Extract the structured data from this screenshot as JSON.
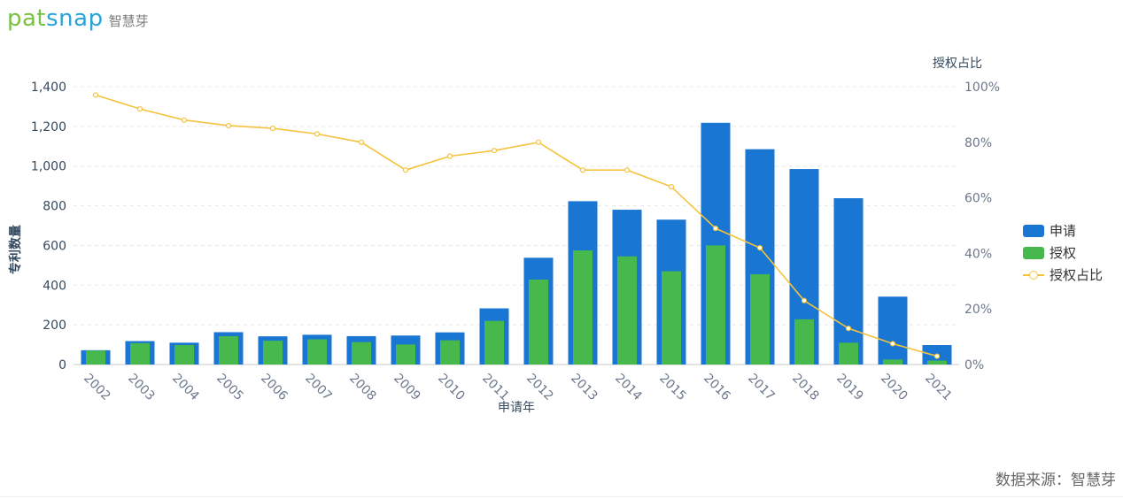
{
  "logo": {
    "part1": "pat",
    "part2": "snap",
    "cn": "智慧芽"
  },
  "source": "数据来源：智慧芽",
  "colors": {
    "apply": "#1976d2",
    "grant": "#46b84c",
    "ratio": "#f4c33d",
    "axis_text": "#34495e",
    "tick_text": "#6b778c",
    "grid": "#e8e8e8"
  },
  "chart_data": {
    "type": "bar",
    "title": "",
    "xlabel": "申请年",
    "ylabel": "专利数量",
    "y2label": "授权占比",
    "ylim": [
      0,
      1400
    ],
    "y2lim": [
      0,
      100
    ],
    "yticks": [
      "0",
      "200",
      "400",
      "600",
      "800",
      "1,000",
      "1,200",
      "1,400"
    ],
    "y2ticks": [
      "0%",
      "20%",
      "40%",
      "60%",
      "80%",
      "100%"
    ],
    "categories": [
      "2002",
      "2003",
      "2004",
      "2005",
      "2006",
      "2007",
      "2008",
      "2009",
      "2010",
      "2011",
      "2012",
      "2013",
      "2014",
      "2015",
      "2016",
      "2017",
      "2018",
      "2019",
      "2020",
      "2021"
    ],
    "series": [
      {
        "name": "申请",
        "kind": "bar",
        "values": [
          72,
          118,
          110,
          163,
          142,
          150,
          143,
          146,
          162,
          283,
          538,
          823,
          780,
          730,
          1218,
          1085,
          985,
          838,
          342,
          98
        ]
      },
      {
        "name": "授权",
        "kind": "bar",
        "values": [
          70,
          108,
          98,
          143,
          120,
          127,
          113,
          101,
          122,
          220,
          428,
          575,
          545,
          470,
          600,
          455,
          228,
          110,
          25,
          20
        ]
      },
      {
        "name": "授权占比",
        "kind": "line",
        "axis": "right",
        "values": [
          97,
          92,
          88,
          86,
          85,
          83,
          80,
          70,
          75,
          77,
          80,
          70,
          70,
          64,
          49,
          42,
          23,
          13,
          7.5,
          3
        ]
      }
    ],
    "legend": {
      "position": "right"
    }
  }
}
